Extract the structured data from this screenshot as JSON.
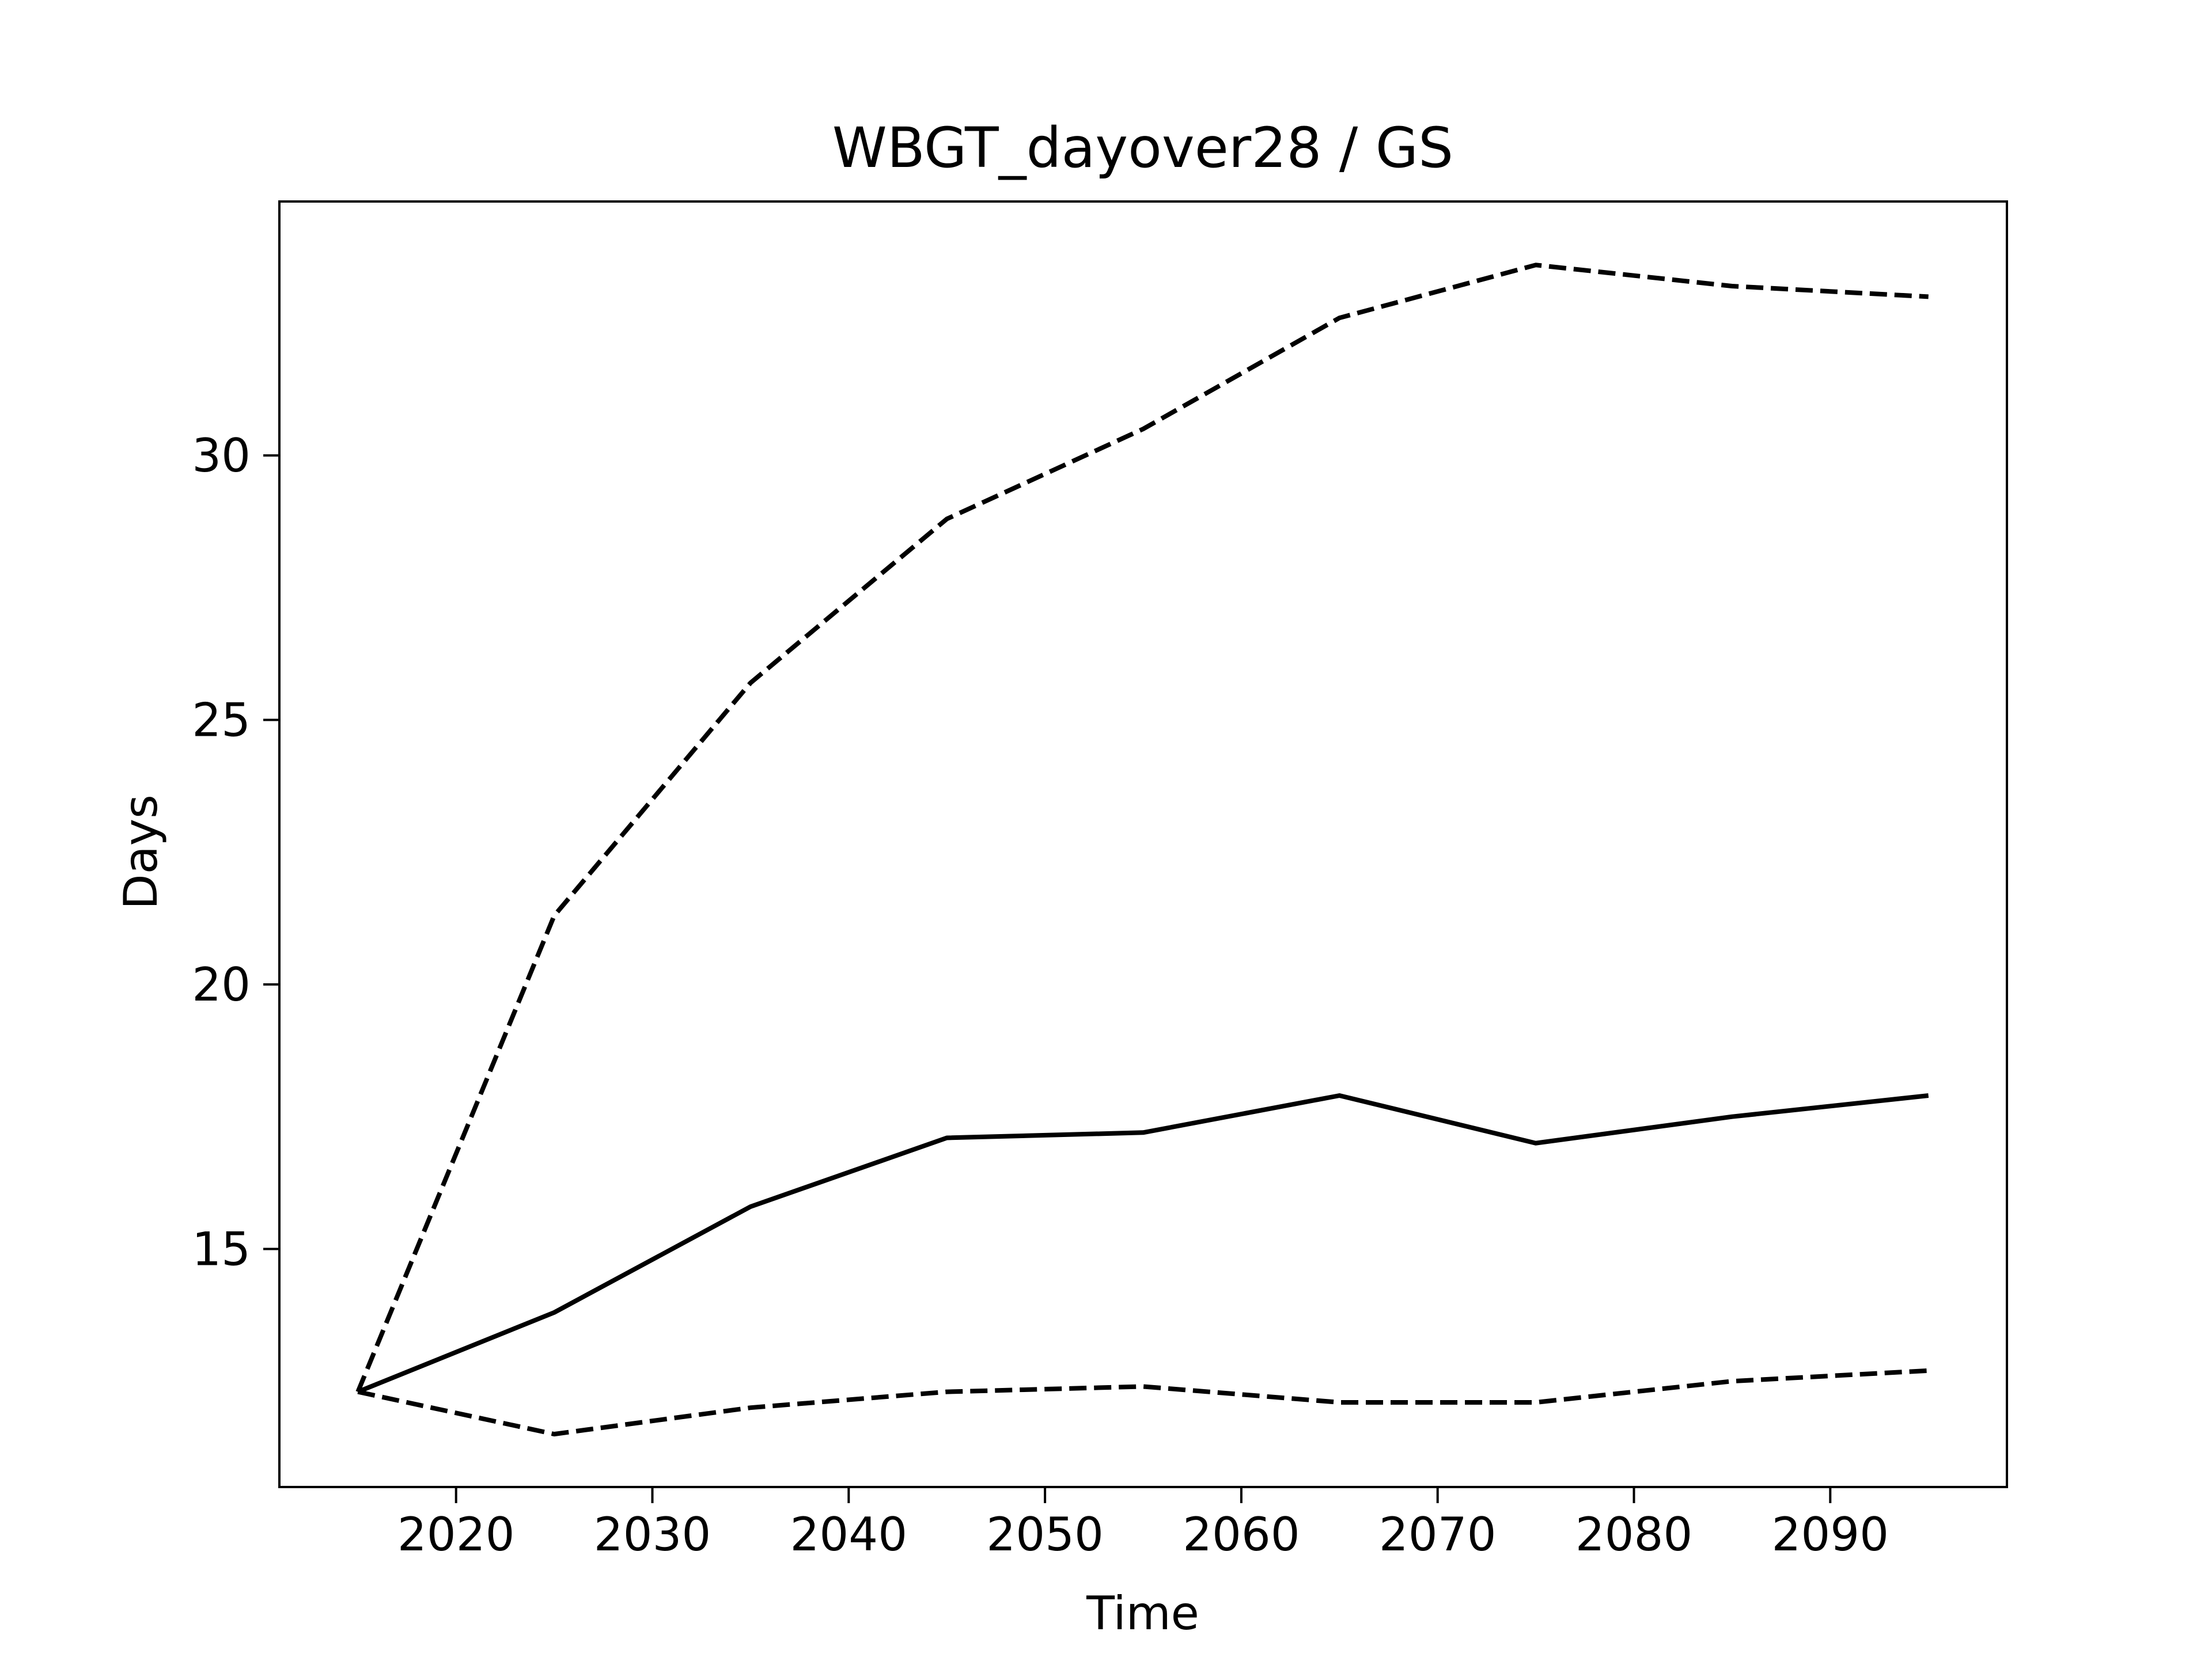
{
  "chart_data": {
    "type": "line",
    "title": "WBGT_dayover28 / GS",
    "xlabel": "Time",
    "ylabel": "Days",
    "xlim": [
      2011,
      2099
    ],
    "ylim": [
      10.5,
      34.8
    ],
    "x_ticks": [
      2020,
      2030,
      2040,
      2050,
      2060,
      2070,
      2080,
      2090
    ],
    "y_ticks": [
      15,
      20,
      25,
      30
    ],
    "grid": false,
    "legend": "none",
    "x": [
      2015,
      2025,
      2035,
      2045,
      2055,
      2065,
      2075,
      2085,
      2095
    ],
    "series": [
      {
        "style": "solid",
        "color": "#000000",
        "values": [
          12.3,
          13.8,
          15.8,
          17.1,
          17.2,
          17.9,
          17.0,
          17.5,
          17.9
        ]
      },
      {
        "style": "dashed",
        "color": "#000000",
        "values": [
          12.3,
          21.3,
          25.7,
          28.8,
          30.5,
          32.6,
          33.6,
          33.2,
          33.0
        ]
      },
      {
        "style": "dashed",
        "color": "#000000",
        "values": [
          12.3,
          11.5,
          12.0,
          12.3,
          12.4,
          12.1,
          12.1,
          12.5,
          12.7
        ]
      }
    ]
  }
}
